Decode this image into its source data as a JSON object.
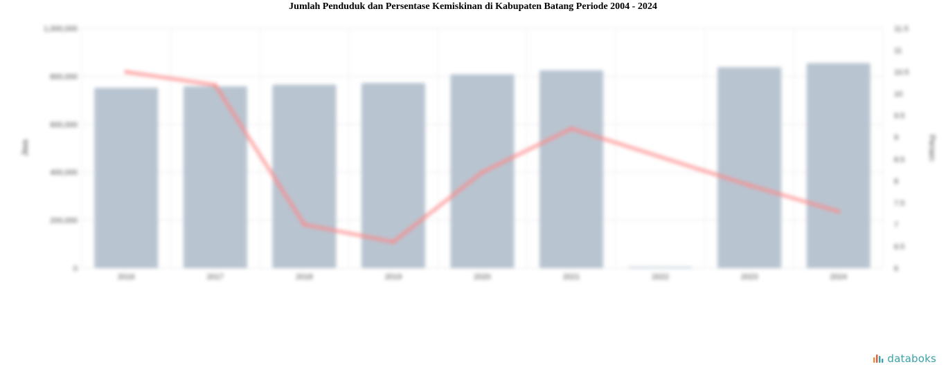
{
  "chart_data": {
    "type": "bar+line",
    "title": "Jumlah Penduduk dan Persentase Kemiskinan di Kabupaten Batang Periode 2004 - 2024",
    "categories": [
      "2016",
      "2017",
      "2018",
      "2019",
      "2020",
      "2021",
      "2022",
      "2023",
      "2024"
    ],
    "series": [
      {
        "type": "bar",
        "axis": "left",
        "values": [
          752000,
          758000,
          765000,
          772000,
          808000,
          825000,
          5000,
          838000,
          855000
        ],
        "color": "#b8c4d0"
      },
      {
        "type": "line",
        "axis": "right",
        "values": [
          10.5,
          10.2,
          7.0,
          6.6,
          8.2,
          9.2,
          null,
          7.9,
          7.3
        ],
        "color": "#ff8a8a"
      }
    ],
    "y_left": {
      "label": "Jiwa",
      "ylim": [
        0,
        1000000
      ],
      "ticks": [
        0,
        200000,
        400000,
        600000,
        800000,
        1000000
      ],
      "tick_labels": [
        "0",
        "200,000",
        "400,000",
        "600,000",
        "800,000",
        "1,000,000"
      ]
    },
    "y_right": {
      "label": "Persen",
      "ylim": [
        6,
        11.5
      ],
      "ticks": [
        6,
        6.5,
        7,
        7.5,
        8,
        8.5,
        9,
        9.5,
        10,
        10.5,
        11,
        11.5
      ],
      "tick_labels": [
        "6",
        "6.5",
        "7",
        "7.5",
        "8",
        "8.5",
        "9",
        "9.5",
        "10",
        "10.5",
        "11",
        "11.5"
      ]
    },
    "grid": true
  },
  "brand": {
    "name": "databoks",
    "icon": "databoks-logo-icon",
    "color": "#3aa2a8"
  }
}
